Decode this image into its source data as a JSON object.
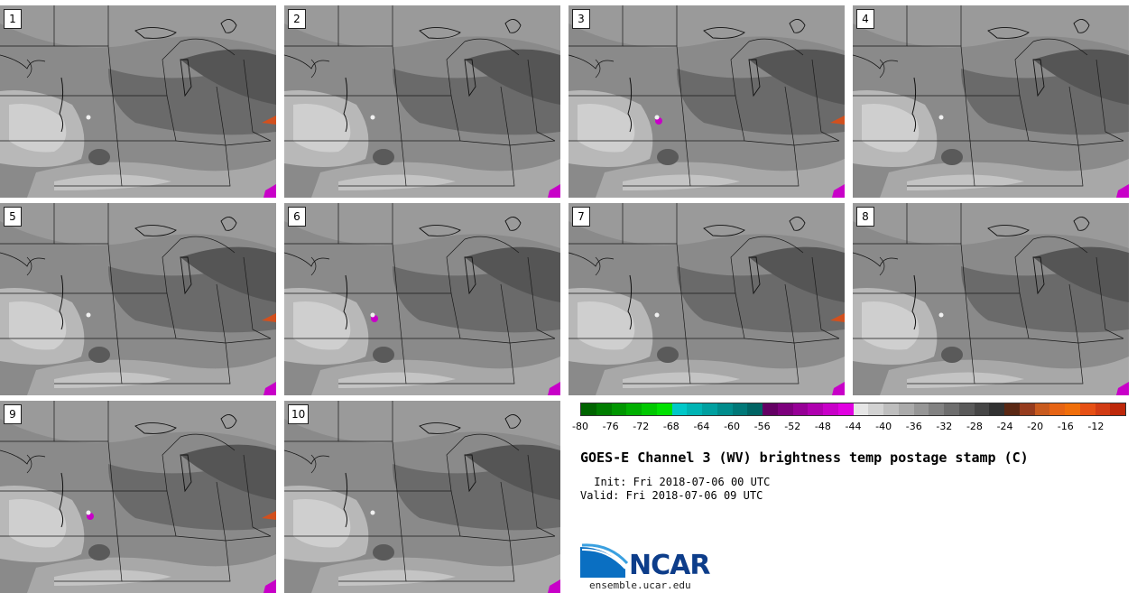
{
  "panels": [
    {
      "label": "1"
    },
    {
      "label": "2"
    },
    {
      "label": "3"
    },
    {
      "label": "4"
    },
    {
      "label": "5"
    },
    {
      "label": "6"
    },
    {
      "label": "7"
    },
    {
      "label": "8"
    },
    {
      "label": "9"
    },
    {
      "label": "10"
    }
  ],
  "colorbar": {
    "colors": [
      "#006400",
      "#007d00",
      "#009600",
      "#00af00",
      "#00c800",
      "#00e100",
      "#00c8c8",
      "#00b4b4",
      "#00a0a0",
      "#008c8c",
      "#007878",
      "#006464",
      "#640064",
      "#7d007d",
      "#960096",
      "#af00af",
      "#c800c8",
      "#e100e1",
      "#e6e6e6",
      "#d2d2d2",
      "#bebebe",
      "#aaaaaa",
      "#969696",
      "#828282",
      "#6e6e6e",
      "#5a5a5a",
      "#464646",
      "#323232",
      "#5a2814",
      "#963c1e",
      "#c85a1e",
      "#e66414",
      "#f06e0a",
      "#e65014",
      "#d23c14",
      "#be280a"
    ],
    "ticks": [
      "-80",
      "-76",
      "-72",
      "-68",
      "-64",
      "-60",
      "-56",
      "-52",
      "-48",
      "-44",
      "-40",
      "-36",
      "-32",
      "-28",
      "-24",
      "-20",
      "-16",
      "-12"
    ]
  },
  "title": "GOES-E Channel 3 (WV) brightness temp postage stamp (C)",
  "init": " Init: Fri 2018-07-06 00 UTC",
  "valid": "Valid: Fri 2018-07-06 09 UTC",
  "logo": {
    "text": "NCAR",
    "site": "ensemble.ucar.edu"
  }
}
